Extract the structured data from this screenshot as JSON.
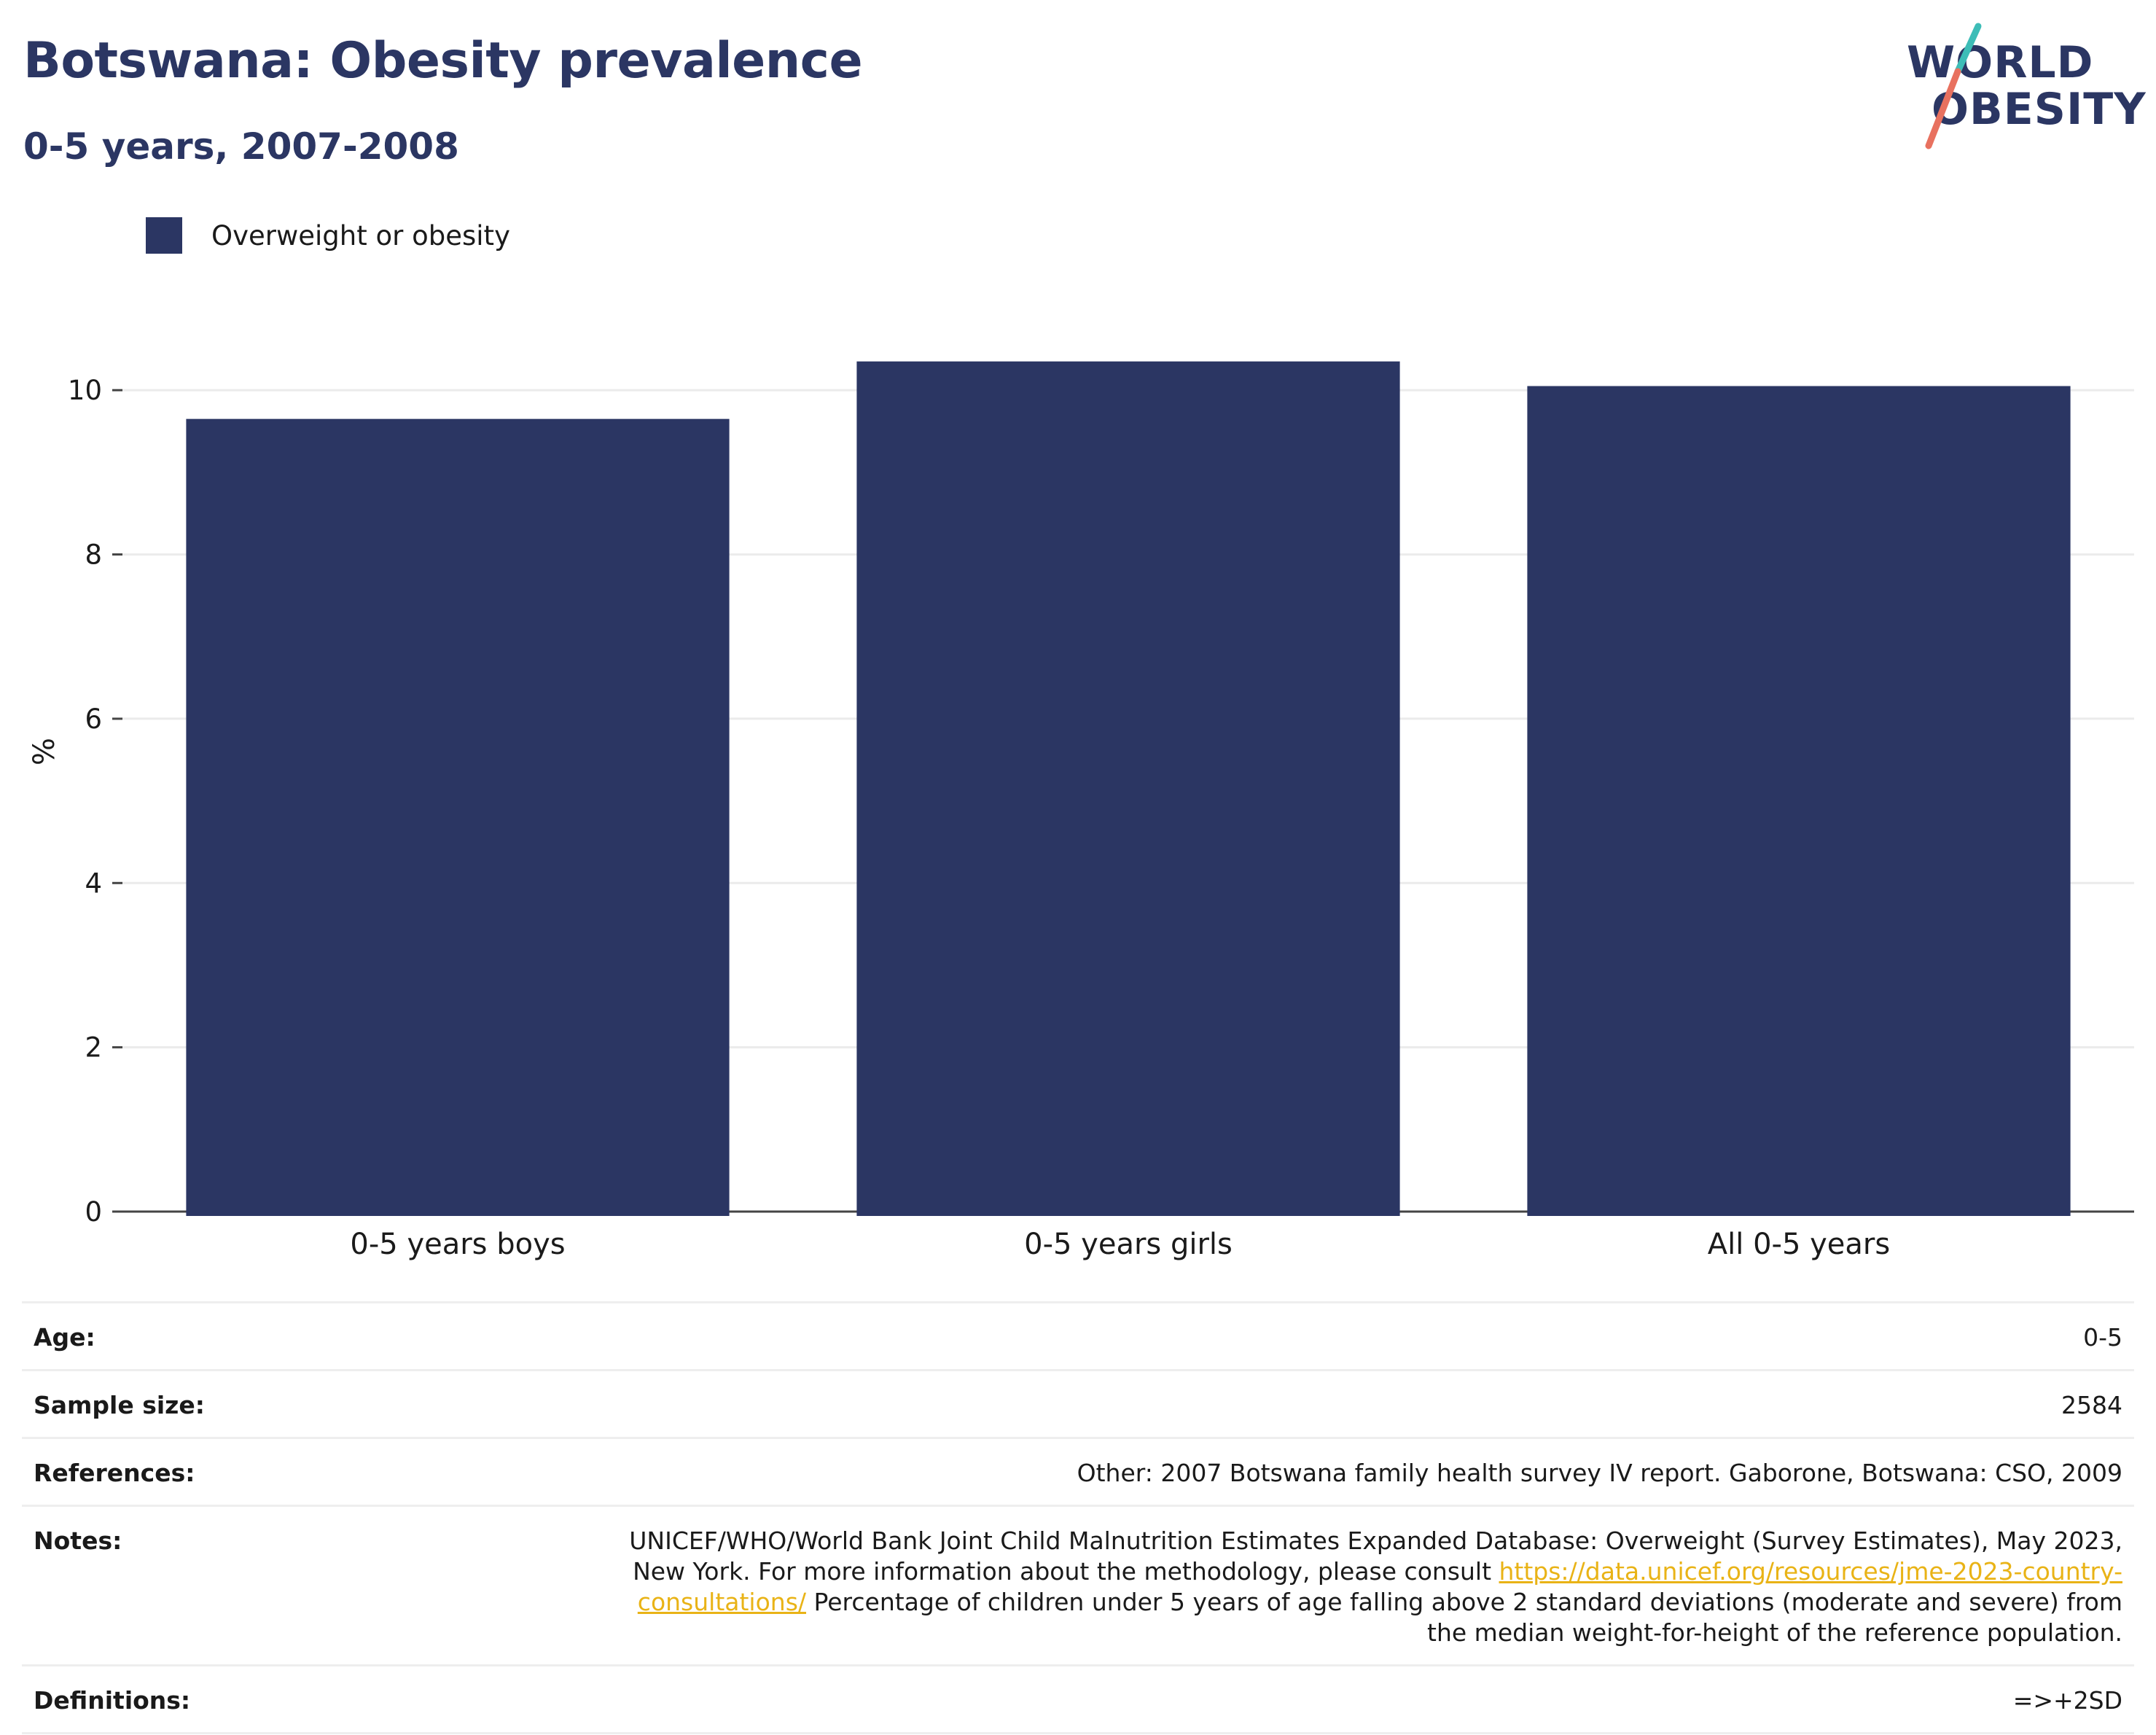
{
  "title": "Botswana: Obesity prevalence",
  "subtitle": "0-5 years, 2007-2008",
  "logo": {
    "line1": "WORLD",
    "line2": "OBESITY"
  },
  "legend": {
    "label": "Overweight or obesity",
    "color": "#2b3663"
  },
  "chart_data": {
    "type": "bar",
    "categories": [
      "0-5 years boys",
      "0-5 years girls",
      "All 0-5 years"
    ],
    "series": [
      {
        "name": "Overweight or obesity",
        "values": [
          9.65,
          10.35,
          10.05
        ],
        "color": "#2b3663"
      }
    ],
    "ylabel": "%",
    "yticks": [
      0,
      2,
      4,
      6,
      8,
      10
    ],
    "ylim": [
      0,
      11.2
    ],
    "grid": true,
    "legend_position": "top-left"
  },
  "meta": {
    "age_label": "Age:",
    "age_value": "0-5",
    "sample_label": "Sample size:",
    "sample_value": "2584",
    "references_label": "References:",
    "references_value": "Other: 2007 Botswana family health survey IV report. Gaborone, Botswana: CSO, 2009",
    "notes_label": "Notes:",
    "notes_text_1": "UNICEF/WHO/World Bank Joint Child Malnutrition Estimates Expanded Database: Overweight (Survey Estimates), May 2023, New York. For more information about the methodology, please consult ",
    "notes_link": "https://data.unicef.org/resources/jme-2023-country-consultations/",
    "notes_text_2": " Percentage of children under 5 years of age falling above 2 standard deviations (moderate and severe) from the median weight-for-height of the reference population.",
    "definitions_label": "Definitions:",
    "definitions_value": "=>+2SD"
  },
  "colors": {
    "brand_navy": "#2b3663",
    "logo_teal": "#3dbdb7",
    "logo_coral": "#e8715f",
    "link": "#e9b316"
  }
}
